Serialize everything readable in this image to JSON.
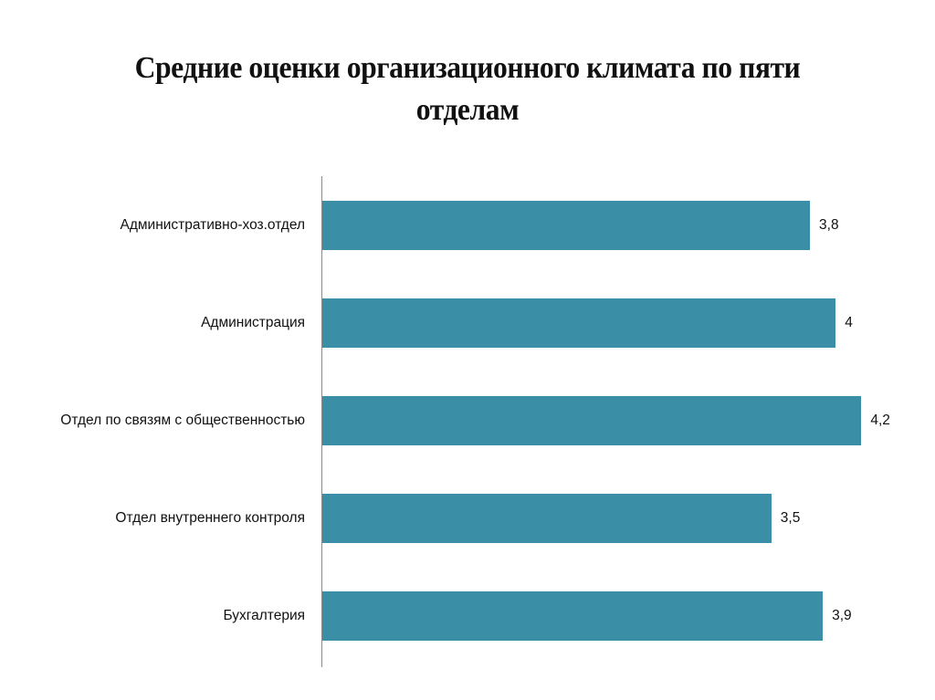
{
  "chart_data": {
    "type": "bar",
    "orientation": "horizontal",
    "title": "Средние оценки организационного климата по пяти отделам",
    "xlabel": "",
    "ylabel": "",
    "categories": [
      "Административно-хоз.отдел",
      "Администрация",
      "Отдел по связям с общественностью",
      "Отдел внутреннего контроля",
      "Бухгалтерия"
    ],
    "values": [
      3.8,
      4,
      4.2,
      3.5,
      3.9
    ],
    "value_labels": [
      "3,8",
      "4",
      "4,2",
      "3,5",
      "3,9"
    ],
    "xlim": [
      0,
      4.5
    ],
    "grid": false,
    "legend": null,
    "bar_color": "#3a8fa6"
  },
  "title_line1": "Средние оценки организационного климата по пяти",
  "title_line2": "отделам"
}
